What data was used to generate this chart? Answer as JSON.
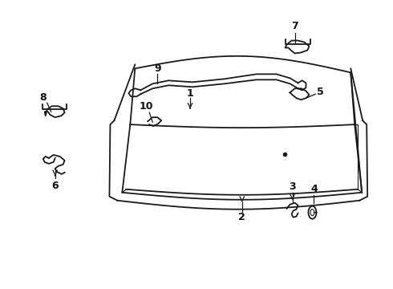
{
  "bg_color": "#ffffff",
  "line_color": "#1a1a1a",
  "label_color": "#111111",
  "figsize": [
    4.9,
    3.6
  ],
  "dpi": 100
}
